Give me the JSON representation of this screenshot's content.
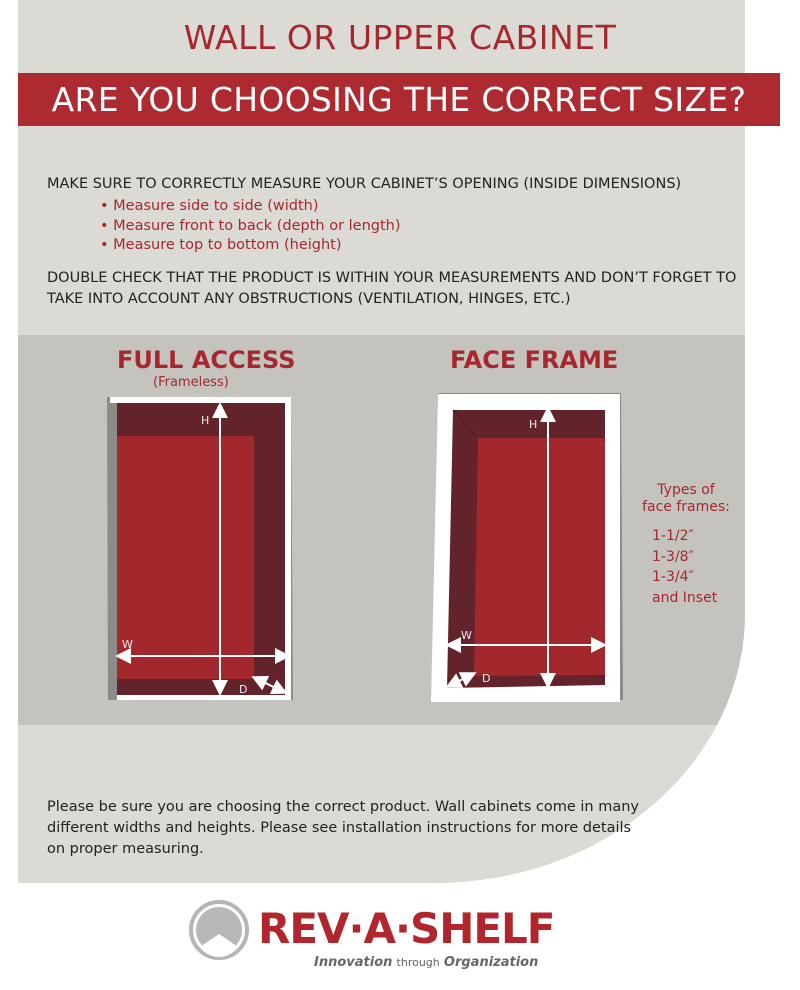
{
  "header": {
    "title": "WALL OR UPPER CABINET",
    "banner": "ARE YOU CHOOSING THE CORRECT SIZE?"
  },
  "instructions": {
    "intro": "MAKE SURE TO CORRECTLY MEASURE YOUR CABINET’S OPENING (INSIDE DIMENSIONS)",
    "bullets": [
      "Measure side to side (width)",
      "Measure front to back (depth or length)",
      "Measure top to bottom (height)"
    ],
    "double_check": "DOUBLE CHECK THAT THE PRODUCT IS WITHIN YOUR MEASUREMENTS AND DON’T FORGET TO TAKE INTO ACCOUNT ANY OBSTRUCTIONS (VENTILATION, HINGES, ETC.)"
  },
  "full_access": {
    "title": "FULL ACCESS",
    "subtitle": "(Frameless)",
    "labels": {
      "h": "H",
      "w": "W",
      "d": "D"
    }
  },
  "face_frame": {
    "title": "FACE FRAME",
    "labels": {
      "h": "H",
      "w": "W",
      "d": "D"
    },
    "types_heading": [
      "Types of",
      "face frames:"
    ],
    "types": [
      "1-1/2″",
      "1-3/8″",
      "1-3/4″",
      "and Inset"
    ]
  },
  "footer": {
    "text": "Please be sure you are choosing the correct product. Wall cabinets come in many different widths and heights. Please see installation instructions for more details on proper measuring."
  },
  "logo": {
    "brand": "REV·A·SHELF",
    "tagline_1": "Innovation",
    "tagline_2": "through",
    "tagline_3": "Organization"
  },
  "colors": {
    "accent": "#ad2a30",
    "panel": "#dcdad5",
    "band": "#c5c3be",
    "cabinet_dark": "#62232a",
    "cabinet_red": "#a2282e"
  }
}
